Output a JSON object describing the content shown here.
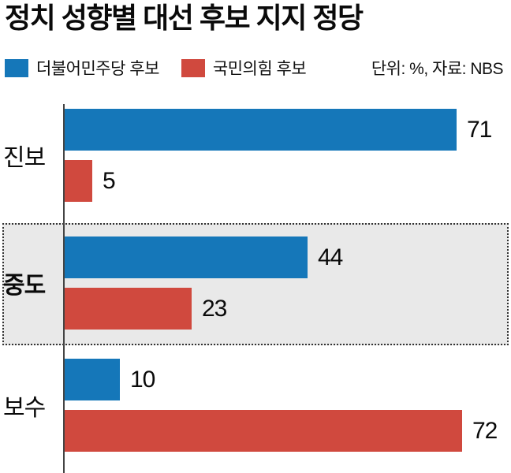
{
  "title": "정치 성향별 대선 후보 지지 정당",
  "legend": {
    "unit_note": "단위: %, 자료: NBS"
  },
  "chart_data": {
    "type": "bar",
    "orientation": "horizontal",
    "title": "정치 성향별 대선 후보 지지 정당",
    "categories": [
      "진보",
      "중도",
      "보수"
    ],
    "series": [
      {
        "name": "더불어민주당 후보",
        "color": "#1577b9",
        "values": [
          71,
          44,
          10
        ]
      },
      {
        "name": "국민의힘 후보",
        "color": "#d0493e",
        "values": [
          5,
          23,
          72
        ]
      }
    ],
    "unit": "%",
    "source": "NBS",
    "highlighted_category": "중도",
    "xlim": [
      0,
      75
    ],
    "value_labels": true,
    "legend_position": "top",
    "grid": false
  },
  "colors": {
    "democratic_blue": "#1577b9",
    "ppp_red": "#d0493e",
    "highlight_bg": "#e9e9e9",
    "axis": "#444444"
  }
}
